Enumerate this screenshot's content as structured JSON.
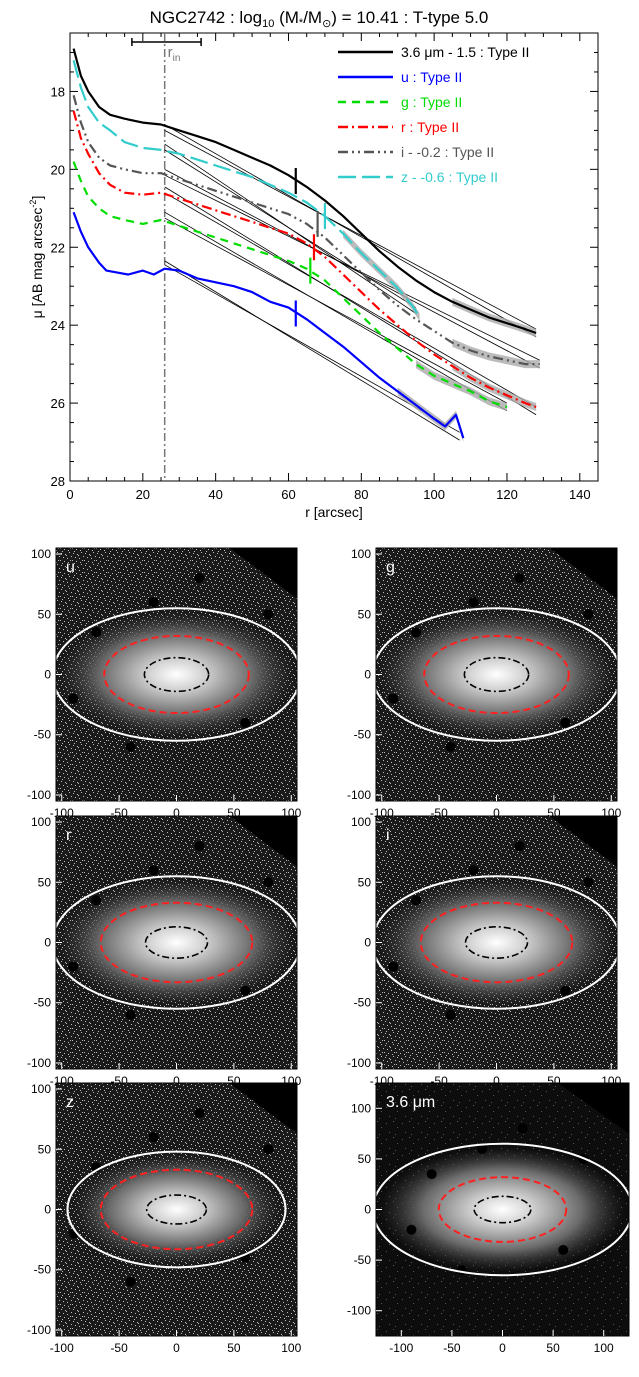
{
  "chart_data": [
    {
      "type": "line",
      "title": "NGC2742 : log10 (M*/M⊙) = 10.41 : T-type 5.0",
      "title_parts": {
        "a": "NGC2742 : log",
        "sub10": "10",
        "b": " (M",
        "star": "*",
        "c": "/M",
        "sun": "⊙",
        "d": ") = 10.41 : T-type 5.0"
      },
      "xlabel": "r [arcsec]",
      "ylabel": "μ [AB mag arcsec⁻²]",
      "ylabel_parts": {
        "a": "μ [AB mag arcsec",
        "sup": "-2",
        "b": "]"
      },
      "xlim": [
        0,
        145
      ],
      "ylim": [
        28,
        16.5
      ],
      "y_inverted": true,
      "x_ticks": [
        0,
        20,
        40,
        60,
        80,
        100,
        120,
        140
      ],
      "y_ticks": [
        18,
        20,
        22,
        24,
        26,
        28
      ],
      "r_in": 26,
      "r_in_label": "r",
      "r_in_sub": "in",
      "r_in_range": [
        17,
        36
      ],
      "legend_position": "top-right",
      "series": [
        {
          "name": "3.6 μm - 1.5 : Type II",
          "label_parts": [
            "3.6 ",
            "μ",
            "m - 1.5 : Type II"
          ],
          "color": "#000000",
          "dash": "solid",
          "break_r": 62,
          "break_mu": 20.3,
          "x": [
            1,
            3,
            5,
            8,
            11,
            15,
            20,
            25,
            30,
            35,
            40,
            45,
            50,
            55,
            60,
            65,
            70,
            75,
            80,
            85,
            90,
            95,
            100,
            105,
            110,
            115,
            120,
            125,
            128
          ],
          "y": [
            16.9,
            17.6,
            18.0,
            18.4,
            18.6,
            18.7,
            18.8,
            18.85,
            19.0,
            19.15,
            19.3,
            19.5,
            19.7,
            19.9,
            20.15,
            20.45,
            20.8,
            21.2,
            21.65,
            22.1,
            22.5,
            22.85,
            23.15,
            23.4,
            23.6,
            23.8,
            23.95,
            24.1,
            24.2
          ]
        },
        {
          "name": "u : Type II",
          "label_parts": [
            "u : Type II"
          ],
          "color": "#0000ff",
          "dash": "solid",
          "break_r": 62,
          "break_mu": 23.7,
          "x": [
            1,
            3,
            5,
            8,
            10,
            13,
            16,
            20,
            23,
            26,
            30,
            35,
            40,
            45,
            50,
            55,
            60,
            65,
            70,
            75,
            80,
            85,
            90,
            95,
            100,
            103,
            106,
            108
          ],
          "y": [
            21.1,
            21.6,
            22.0,
            22.4,
            22.6,
            22.65,
            22.7,
            22.6,
            22.7,
            22.55,
            22.6,
            22.8,
            22.9,
            23.0,
            23.15,
            23.4,
            23.55,
            23.85,
            24.2,
            24.55,
            24.95,
            25.35,
            25.7,
            26.05,
            26.4,
            26.6,
            26.3,
            26.9
          ]
        },
        {
          "name": "g : Type II",
          "label_parts": [
            "g : Type II"
          ],
          "color": "#00dd00",
          "dash": "8,6",
          "break_r": 66,
          "break_mu": 22.6,
          "x": [
            1,
            3,
            5,
            8,
            11,
            15,
            20,
            25,
            30,
            35,
            40,
            45,
            50,
            55,
            60,
            65,
            70,
            75,
            80,
            85,
            90,
            95,
            100,
            105,
            110,
            115,
            120
          ],
          "y": [
            19.8,
            20.3,
            20.7,
            21.0,
            21.2,
            21.3,
            21.4,
            21.3,
            21.45,
            21.6,
            21.75,
            21.9,
            22.05,
            22.2,
            22.35,
            22.55,
            22.85,
            23.3,
            23.75,
            24.2,
            24.6,
            25.0,
            25.3,
            25.5,
            25.7,
            25.95,
            26.1
          ]
        },
        {
          "name": "r : Type II",
          "label_parts": [
            "r : Type II"
          ],
          "color": "#ff0000",
          "dash": "10,4,2,4",
          "break_r": 67,
          "break_mu": 22.0,
          "x": [
            1,
            3,
            5,
            8,
            11,
            15,
            20,
            25,
            30,
            35,
            40,
            45,
            50,
            55,
            60,
            65,
            70,
            75,
            80,
            85,
            90,
            95,
            100,
            105,
            110,
            115,
            120,
            125,
            128
          ],
          "y": [
            18.5,
            19.2,
            19.6,
            20.1,
            20.4,
            20.6,
            20.65,
            20.6,
            20.75,
            20.9,
            21.05,
            21.2,
            21.35,
            21.5,
            21.65,
            21.9,
            22.25,
            22.7,
            23.15,
            23.6,
            24.0,
            24.4,
            24.75,
            25.05,
            25.35,
            25.6,
            25.8,
            26.0,
            26.1
          ]
        },
        {
          "name": "i - -0.2 : Type II",
          "label_parts": [
            "i - -0.2 : Type II"
          ],
          "color": "#555555",
          "dash": "10,4,2,4,2,4",
          "break_r": 68,
          "break_mu": 21.4,
          "x": [
            1,
            3,
            5,
            8,
            11,
            15,
            20,
            25,
            30,
            35,
            40,
            45,
            50,
            55,
            60,
            65,
            70,
            75,
            80,
            85,
            90,
            95,
            100,
            105,
            110,
            115,
            120,
            125,
            129
          ],
          "y": [
            18.1,
            18.8,
            19.3,
            19.7,
            19.9,
            20.0,
            20.1,
            20.1,
            20.25,
            20.4,
            20.55,
            20.7,
            20.85,
            21.0,
            21.15,
            21.4,
            21.75,
            22.2,
            22.65,
            23.1,
            23.5,
            23.85,
            24.15,
            24.45,
            24.65,
            24.8,
            24.9,
            25.0,
            25.0
          ]
        },
        {
          "name": "z - -0.6 : Type II",
          "label_parts": [
            "z - -0.6 : Type II"
          ],
          "color": "#33cccc",
          "dash": "18,6",
          "break_r": 70,
          "break_mu": 21.2,
          "x": [
            1,
            3,
            5,
            8,
            11,
            15,
            20,
            25,
            30,
            35,
            40,
            45,
            50,
            55,
            60,
            65,
            70,
            75,
            80,
            85,
            90,
            94,
            96
          ],
          "y": [
            17.2,
            17.9,
            18.4,
            18.8,
            19.0,
            19.3,
            19.45,
            19.5,
            19.6,
            19.75,
            19.9,
            20.05,
            20.2,
            20.4,
            20.6,
            20.85,
            21.2,
            21.65,
            22.15,
            22.6,
            23.05,
            23.5,
            23.8
          ]
        }
      ],
      "fits": [
        {
          "x": [
            26,
            128
          ],
          "y": [
            18.85,
            24.3
          ]
        },
        {
          "x": [
            26,
            128
          ],
          "y": [
            19.0,
            24.1
          ]
        },
        {
          "x": [
            26,
            107
          ],
          "y": [
            22.35,
            26.95
          ]
        },
        {
          "x": [
            26,
            107
          ],
          "y": [
            22.45,
            26.75
          ]
        },
        {
          "x": [
            26,
            120
          ],
          "y": [
            21.1,
            26.2
          ]
        },
        {
          "x": [
            26,
            120
          ],
          "y": [
            21.25,
            26.0
          ]
        },
        {
          "x": [
            26,
            128
          ],
          "y": [
            20.45,
            26.3
          ]
        },
        {
          "x": [
            26,
            128
          ],
          "y": [
            20.6,
            26.1
          ]
        },
        {
          "x": [
            26,
            129
          ],
          "y": [
            20.0,
            25.1
          ]
        },
        {
          "x": [
            26,
            129
          ],
          "y": [
            20.15,
            24.9
          ]
        },
        {
          "x": [
            26,
            95
          ],
          "y": [
            19.35,
            23.7
          ]
        },
        {
          "x": [
            26,
            95
          ],
          "y": [
            19.5,
            23.55
          ]
        }
      ]
    },
    {
      "type": "heatmap",
      "panels": [
        {
          "label": "u",
          "label_parts": [
            "u"
          ],
          "xlim": [
            -105,
            105
          ],
          "ylim": [
            -105,
            105
          ],
          "x_ticks": [
            -100,
            -50,
            0,
            50,
            100
          ],
          "y_ticks": [
            100,
            50,
            0,
            -50,
            -100
          ],
          "outer_semi": [
            108,
            55
          ],
          "mid_semi": [
            63,
            32
          ],
          "inner_semi": [
            28,
            14
          ]
        },
        {
          "label": "g",
          "label_parts": [
            "g"
          ],
          "xlim": [
            -105,
            105
          ],
          "ylim": [
            -105,
            105
          ],
          "x_ticks": [
            -100,
            -50,
            0,
            50,
            100
          ],
          "y_ticks": [
            100,
            50,
            0,
            -50,
            -100
          ],
          "outer_semi": [
            108,
            55
          ],
          "mid_semi": [
            63,
            32
          ],
          "inner_semi": [
            28,
            14
          ]
        },
        {
          "label": "r",
          "label_parts": [
            "r"
          ],
          "xlim": [
            -105,
            105
          ],
          "ylim": [
            -105,
            105
          ],
          "x_ticks": [
            -100,
            -50,
            0,
            50,
            100
          ],
          "y_ticks": [
            100,
            50,
            0,
            -50,
            -100
          ],
          "outer_semi": [
            108,
            55
          ],
          "mid_semi": [
            66,
            33
          ],
          "inner_semi": [
            27,
            13
          ]
        },
        {
          "label": "i",
          "label_parts": [
            "i"
          ],
          "xlim": [
            -105,
            105
          ],
          "ylim": [
            -105,
            105
          ],
          "x_ticks": [
            -100,
            -50,
            0,
            50,
            100
          ],
          "y_ticks": [
            100,
            50,
            0,
            -50,
            -100
          ],
          "outer_semi": [
            108,
            55
          ],
          "mid_semi": [
            66,
            33
          ],
          "inner_semi": [
            27,
            13
          ]
        },
        {
          "label": "z",
          "label_parts": [
            "z"
          ],
          "xlim": [
            -105,
            105
          ],
          "ylim": [
            -105,
            105
          ],
          "x_ticks": [
            -100,
            -50,
            0,
            50,
            100
          ],
          "y_ticks": [
            100,
            50,
            0,
            -50,
            -100
          ],
          "outer_semi": [
            95,
            48
          ],
          "mid_semi": [
            66,
            33
          ],
          "inner_semi": [
            26,
            12
          ]
        },
        {
          "label": "3.6 μm",
          "label_parts": [
            "3.6 ",
            "μ",
            "m"
          ],
          "xlim": [
            -125,
            125
          ],
          "ylim": [
            -125,
            125
          ],
          "x_ticks": [
            -100,
            -50,
            0,
            50,
            100
          ],
          "y_ticks": [
            100,
            50,
            0,
            -50,
            -100
          ],
          "outer_semi": [
            128,
            65
          ],
          "mid_semi": [
            63,
            32
          ],
          "inner_semi": [
            28,
            13
          ]
        }
      ]
    }
  ]
}
